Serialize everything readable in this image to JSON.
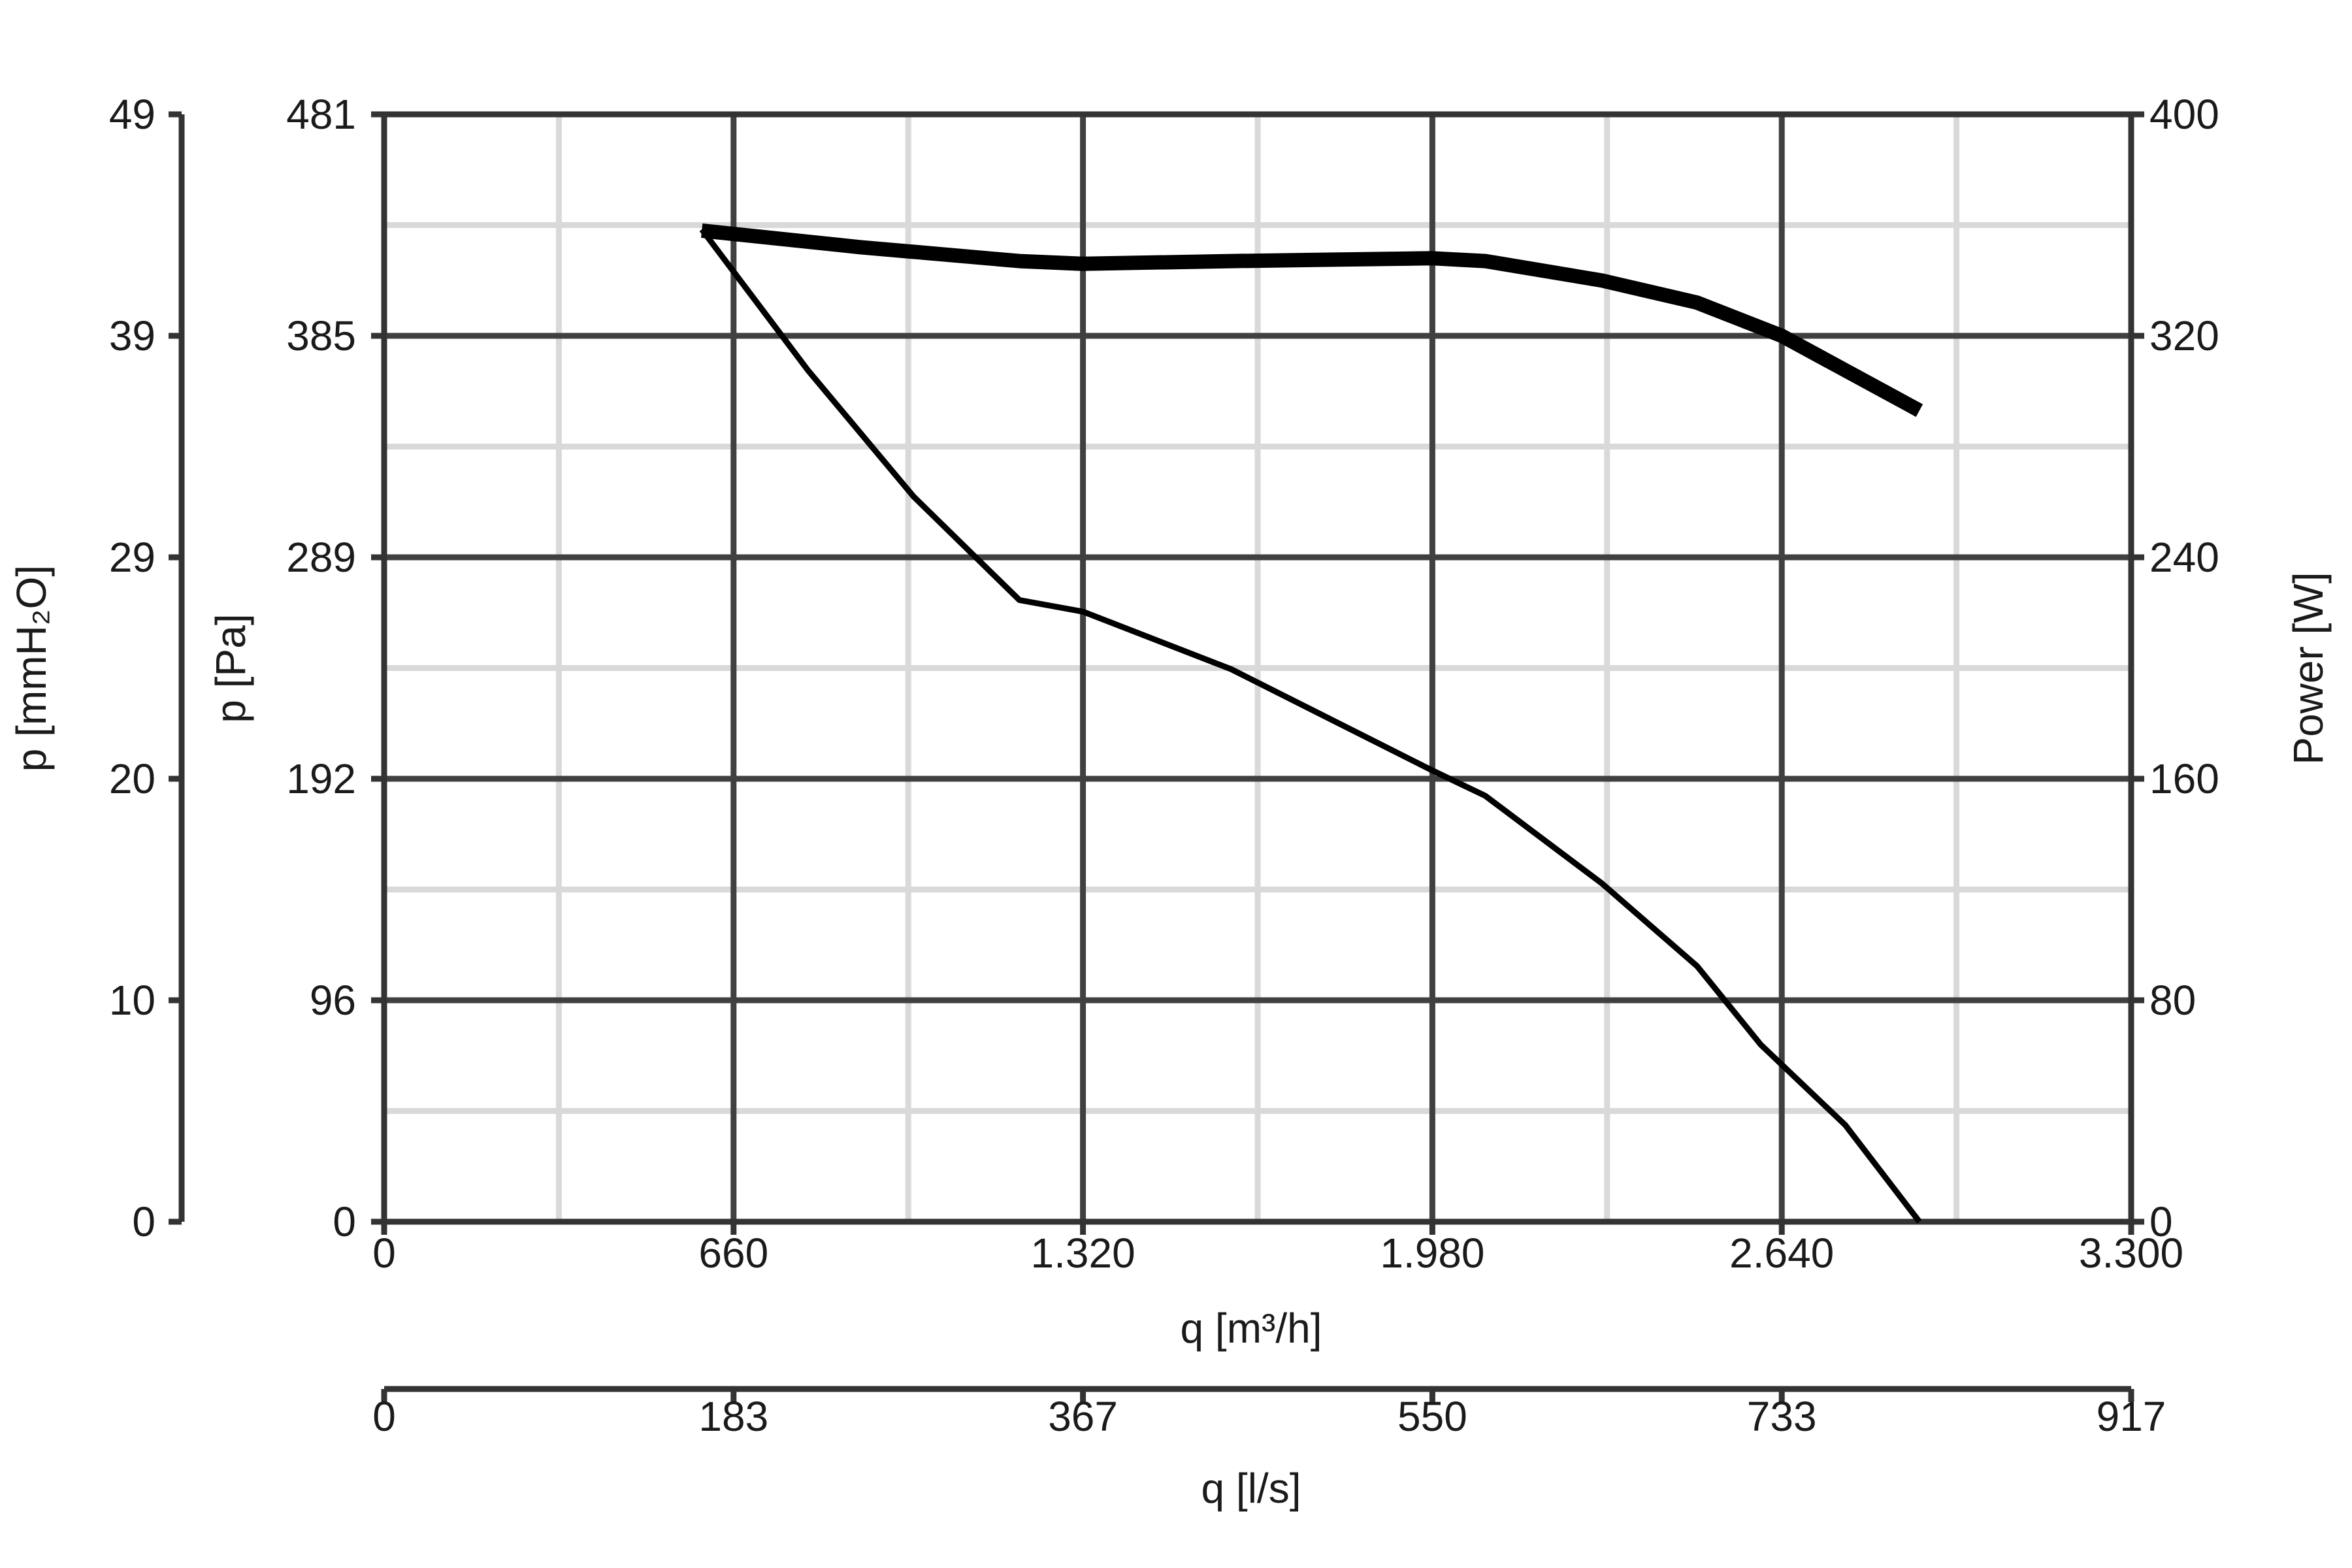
{
  "chart_data": {
    "type": "line",
    "x_axis": {
      "label": "q [m³/h]",
      "range": [
        0,
        3300
      ],
      "ticks": [
        "0",
        "660",
        "1.320",
        "1.980",
        "2.640",
        "3.300"
      ]
    },
    "x2_axis": {
      "label": "q [l/s]",
      "range": [
        0,
        917
      ],
      "ticks": [
        "0",
        "183",
        "367",
        "550",
        "733",
        "917"
      ]
    },
    "y_axis": {
      "label": "p [Pa]",
      "range": [
        0,
        481
      ],
      "ticks": [
        "0",
        "96",
        "192",
        "289",
        "385",
        "481"
      ]
    },
    "y_outer_axis": {
      "label": "p [mmH₂O]",
      "range": [
        0,
        49
      ],
      "ticks": [
        "0",
        "10",
        "20",
        "29",
        "39",
        "49"
      ]
    },
    "y_right_axis": {
      "label": "Power [W]",
      "range": [
        0,
        400
      ],
      "ticks": [
        "0",
        "80",
        "160",
        "240",
        "320",
        "400"
      ]
    },
    "grid": true,
    "series": [
      {
        "axis": "pressure",
        "stroke": "thin",
        "x": [
          600,
          800,
          1000,
          1200,
          1320,
          1600,
          1980,
          2080,
          2300,
          2480,
          2600,
          2760,
          2900
        ],
        "y": [
          431,
          370,
          315,
          270,
          265,
          240,
          196,
          185,
          147,
          111,
          77,
          42,
          0
        ]
      },
      {
        "axis": "power",
        "stroke": "thick",
        "x": [
          600,
          900,
          1200,
          1320,
          1600,
          1980,
          2080,
          2300,
          2480,
          2640,
          2900
        ],
        "y": [
          358,
          352,
          347,
          346,
          347,
          348,
          347,
          340,
          332,
          320,
          293
        ]
      }
    ],
    "colors": {
      "curve": "#000000",
      "axis": "#333333",
      "grid_major": "#404040",
      "grid_minor": "#d9d9d9"
    }
  }
}
